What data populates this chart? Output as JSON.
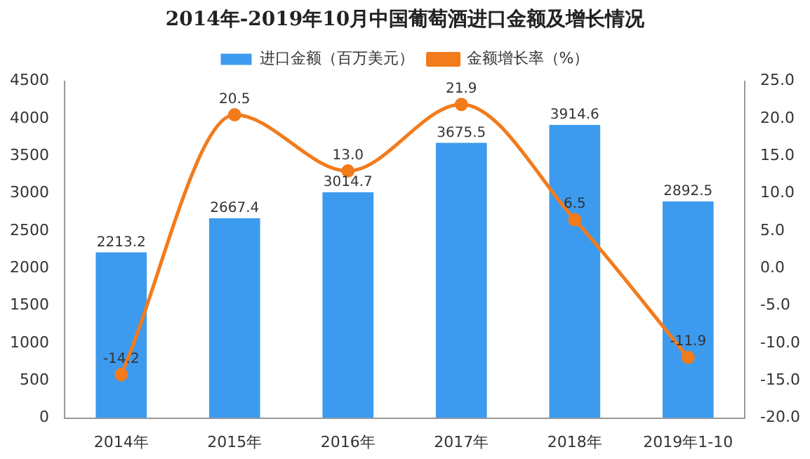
{
  "chart_data": {
    "type": "bar",
    "title": "2014年-2019年10月中国葡萄酒进口金额及增长情况",
    "categories": [
      "2014年",
      "2015年",
      "2016年",
      "2017年",
      "2018年",
      "2019年1-10"
    ],
    "series": [
      {
        "name": "进口金额（百万美元）",
        "color": "#3d9bef",
        "values": [
          2213.2,
          2667.4,
          3014.7,
          3675.5,
          3914.6,
          2892.5
        ],
        "value_labels": [
          "2213.2",
          "2667.4",
          "3014.7",
          "3675.5",
          "3914.6",
          "2892.5"
        ]
      },
      {
        "name": "金额增长率（%）",
        "type": "line",
        "axis": "y2",
        "color": "#f27b1c",
        "values": [
          -14.2,
          20.5,
          13.0,
          21.9,
          6.5,
          -11.9
        ],
        "value_labels": [
          "-14.2",
          "20.5",
          "13.0",
          "21.9",
          "6.5",
          "-11.9"
        ]
      }
    ],
    "ylim": [
      0,
      4500
    ],
    "yticks": [
      0,
      500,
      1000,
      1500,
      2000,
      2500,
      3000,
      3500,
      4000,
      4500
    ],
    "y2lim": [
      -20,
      25
    ],
    "y2ticks": [
      {
        "value": -20,
        "label": "-20.0"
      },
      {
        "value": -15,
        "label": "-15.0"
      },
      {
        "value": -10,
        "label": "-10.0"
      },
      {
        "value": -5,
        "label": "-5.0"
      },
      {
        "value": 0,
        "label": "0.0"
      },
      {
        "value": 5,
        "label": "5.0"
      },
      {
        "value": 10,
        "label": "10.0"
      },
      {
        "value": 15,
        "label": "15.0"
      },
      {
        "value": 20,
        "label": "20.0"
      },
      {
        "value": 25,
        "label": "25.0"
      }
    ],
    "legend": "top",
    "marker": "circle",
    "line_style": "solid",
    "grid": false
  }
}
